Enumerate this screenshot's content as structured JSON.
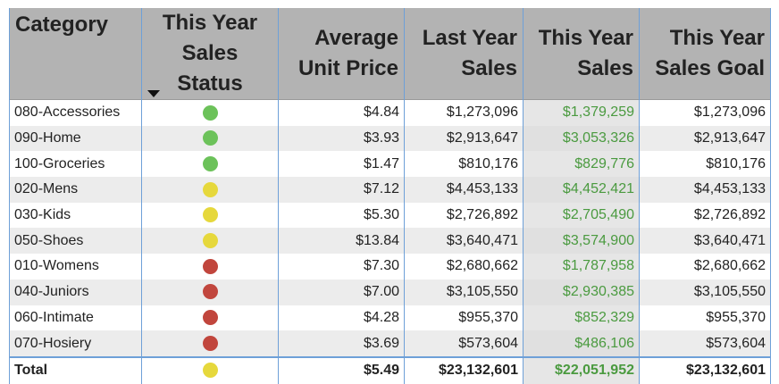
{
  "table": {
    "columns": [
      "Category",
      "This Year Sales Status",
      "Average Unit Price",
      "Last Year Sales",
      "This Year Sales",
      "This Year Sales Goal"
    ],
    "status_colors": {
      "green": "#6cc25a",
      "yellow": "#e6d83c",
      "red": "#c1463d"
    },
    "rows": [
      [
        "080-Accessories",
        "green",
        "$4.84",
        "$1,273,096",
        "$1,379,259",
        "$1,273,096"
      ],
      [
        "090-Home",
        "green",
        "$3.93",
        "$2,913,647",
        "$3,053,326",
        "$2,913,647"
      ],
      [
        "100-Groceries",
        "green",
        "$1.47",
        "$810,176",
        "$829,776",
        "$810,176"
      ],
      [
        "020-Mens",
        "yellow",
        "$7.12",
        "$4,453,133",
        "$4,452,421",
        "$4,453,133"
      ],
      [
        "030-Kids",
        "yellow",
        "$5.30",
        "$2,726,892",
        "$2,705,490",
        "$2,726,892"
      ],
      [
        "050-Shoes",
        "yellow",
        "$13.84",
        "$3,640,471",
        "$3,574,900",
        "$3,640,471"
      ],
      [
        "010-Womens",
        "red",
        "$7.30",
        "$2,680,662",
        "$1,787,958",
        "$2,680,662"
      ],
      [
        "040-Juniors",
        "red",
        "$7.00",
        "$3,105,550",
        "$2,930,385",
        "$3,105,550"
      ],
      [
        "060-Intimate",
        "red",
        "$4.28",
        "$955,370",
        "$852,329",
        "$955,370"
      ],
      [
        "070-Hosiery",
        "red",
        "$3.69",
        "$573,604",
        "$486,106",
        "$573,604"
      ]
    ],
    "total": [
      "Total",
      "yellow",
      "$5.49",
      "$23,132,601",
      "$22,051,952",
      "$23,132,601"
    ]
  }
}
